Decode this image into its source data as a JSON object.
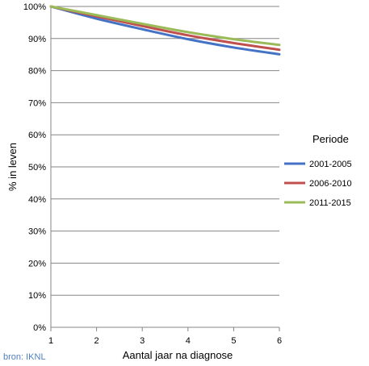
{
  "chart_data": {
    "type": "line",
    "xlabel": "Aantal jaar na diagnose",
    "ylabel": "% in leven",
    "x": [
      1,
      2,
      3,
      4,
      5,
      6
    ],
    "xticks": [
      "1",
      "2",
      "3",
      "4",
      "5",
      "6"
    ],
    "yticks": [
      "0%",
      "10%",
      "20%",
      "30%",
      "40%",
      "50%",
      "60%",
      "70%",
      "80%",
      "90%",
      "100%"
    ],
    "xlim": [
      1,
      6
    ],
    "ylim": [
      0,
      100
    ],
    "grid": "horizontal",
    "legend": {
      "title": "Periode",
      "placement": "right"
    },
    "series": [
      {
        "name": "2001-2005",
        "color": "#4472c4",
        "values": [
          100,
          96.2,
          92.9,
          89.8,
          87.2,
          85.1
        ]
      },
      {
        "name": "2006-2010",
        "color": "#c0504d",
        "values": [
          100,
          96.9,
          93.9,
          91.0,
          88.6,
          86.5
        ]
      },
      {
        "name": "2011-2015",
        "color": "#9bbb59",
        "values": [
          100,
          97.3,
          94.6,
          92.0,
          89.8,
          88.0
        ]
      }
    ],
    "source": "bron: IKNL",
    "source_color": "#4f81bd"
  }
}
